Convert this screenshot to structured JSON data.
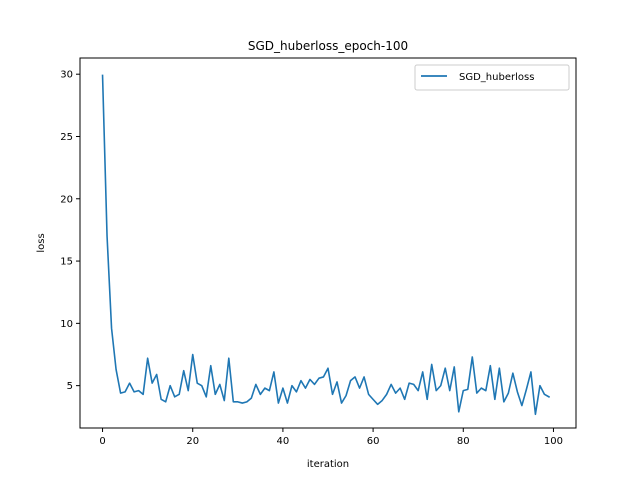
{
  "chart_data": {
    "type": "line",
    "title": "SGD_huberloss_epoch-100",
    "xlabel": "iteration",
    "ylabel": "loss",
    "xlim": [
      -5,
      105
    ],
    "ylim": [
      1.6,
      31.3
    ],
    "xticks": [
      0,
      20,
      40,
      60,
      80,
      100
    ],
    "yticks": [
      5,
      10,
      15,
      20,
      25,
      30
    ],
    "grid": false,
    "legend": "top-right",
    "series": [
      {
        "name": "SGD_huberloss",
        "color": "#1f77b4",
        "x": [
          0,
          1,
          2,
          3,
          4,
          5,
          6,
          7,
          8,
          9,
          10,
          11,
          12,
          13,
          14,
          15,
          16,
          17,
          18,
          19,
          20,
          21,
          22,
          23,
          24,
          25,
          26,
          27,
          28,
          29,
          30,
          31,
          32,
          33,
          34,
          35,
          36,
          37,
          38,
          39,
          40,
          41,
          42,
          43,
          44,
          45,
          46,
          47,
          48,
          49,
          50,
          51,
          52,
          53,
          54,
          55,
          56,
          57,
          58,
          59,
          60,
          61,
          62,
          63,
          64,
          65,
          66,
          67,
          68,
          69,
          70,
          71,
          72,
          73,
          74,
          75,
          76,
          77,
          78,
          79,
          80,
          81,
          82,
          83,
          84,
          85,
          86,
          87,
          88,
          89,
          90,
          91,
          92,
          93,
          94,
          95,
          96,
          97,
          98,
          99
        ],
        "values": [
          29.9,
          17.0,
          9.6,
          6.3,
          4.4,
          4.5,
          5.2,
          4.5,
          4.6,
          4.3,
          7.2,
          5.2,
          5.9,
          3.9,
          3.7,
          5.0,
          4.1,
          4.3,
          6.2,
          4.6,
          7.5,
          5.2,
          5.0,
          4.1,
          6.6,
          4.3,
          5.1,
          3.8,
          7.2,
          3.7,
          3.7,
          3.6,
          3.7,
          4.0,
          5.1,
          4.3,
          4.8,
          4.6,
          6.1,
          3.6,
          4.8,
          3.6,
          5.0,
          4.5,
          5.4,
          4.8,
          5.5,
          5.1,
          5.6,
          5.7,
          6.4,
          4.3,
          5.3,
          3.6,
          4.2,
          5.4,
          5.7,
          4.8,
          5.7,
          4.3,
          3.9,
          3.5,
          3.8,
          4.3,
          5.1,
          4.4,
          4.8,
          3.9,
          5.2,
          5.1,
          4.6,
          6.1,
          3.9,
          6.7,
          4.6,
          5.0,
          6.4,
          4.6,
          6.5,
          2.9,
          4.6,
          4.7,
          7.3,
          4.4,
          4.8,
          4.6,
          6.6,
          3.9,
          6.4,
          3.7,
          4.4,
          6.0,
          4.5,
          3.4,
          4.7,
          6.1,
          2.7,
          5.0,
          4.3,
          4.1
        ]
      }
    ]
  }
}
